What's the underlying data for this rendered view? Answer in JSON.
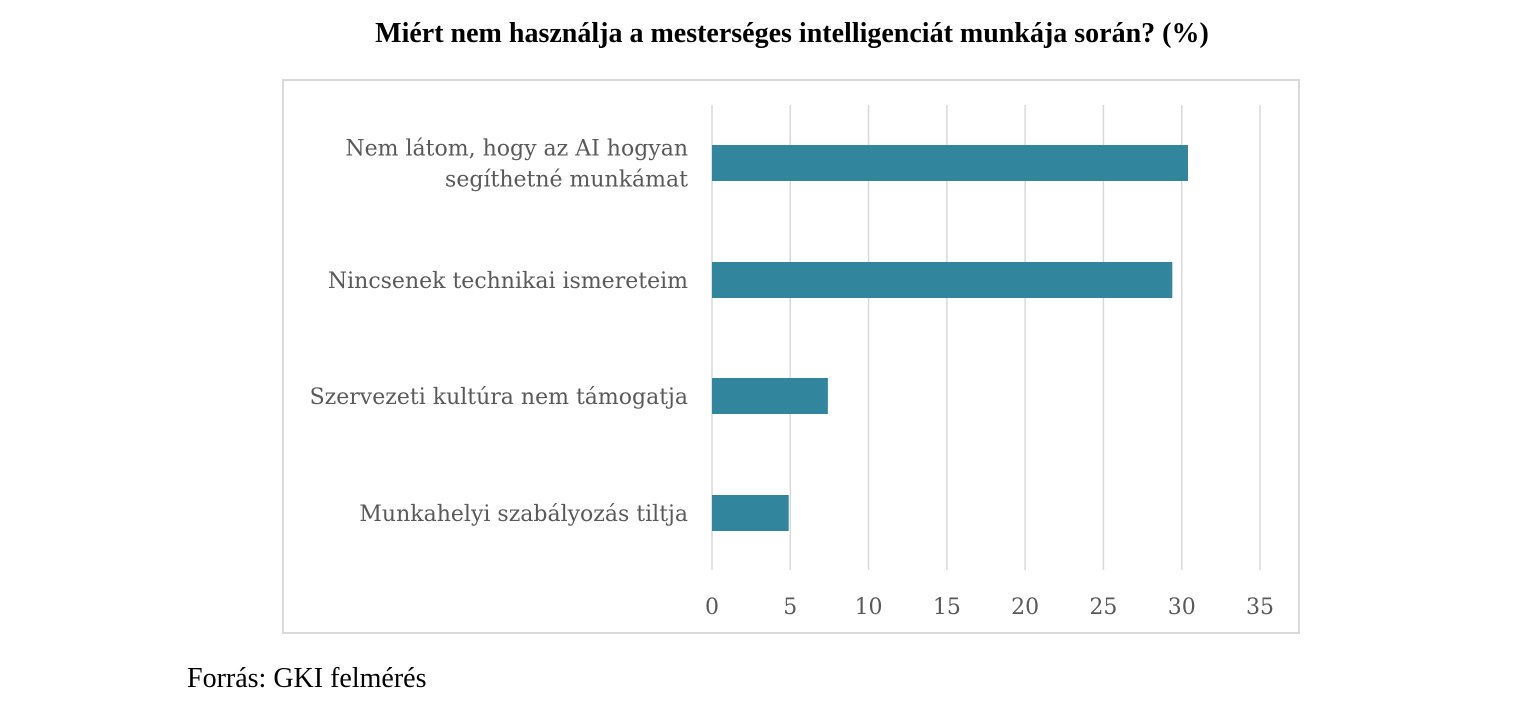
{
  "chart_data": {
    "type": "bar",
    "orientation": "horizontal",
    "title": "Miért nem használja a mesterséges intelligenciát munkája során? (%)",
    "categories": [
      [
        "Nem látom, hogy az AI hogyan",
        "segíthetné munkámat"
      ],
      [
        "Nincsenek technikai ismereteim"
      ],
      [
        "Szervezeti kultúra nem támogatja"
      ],
      [
        "Munkahelyi szabályozás tiltja"
      ]
    ],
    "values": [
      30.4,
      29.4,
      7.4,
      4.9
    ],
    "xlim": [
      0,
      35
    ],
    "xticks": [
      "0",
      "5",
      "10",
      "15",
      "20",
      "25",
      "30",
      "35"
    ],
    "grid": "vertical",
    "bar_color": "#31859c",
    "grid_color": "#d9d9d9"
  },
  "source": "Forrás: GKI felmérés"
}
